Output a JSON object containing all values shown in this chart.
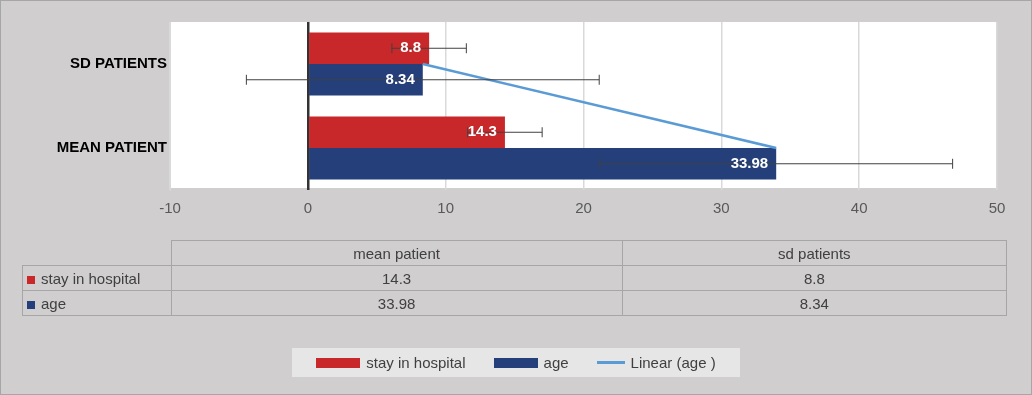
{
  "chart_data": {
    "type": "bar",
    "orientation": "horizontal",
    "categories": [
      "SD PATIENTS",
      "MEAN PATIENT"
    ],
    "series": [
      {
        "name": "stay in hospital",
        "color": "#c9282a",
        "values": [
          8.8,
          14.3
        ],
        "errors": [
          2.7,
          2.7
        ],
        "value_labels": [
          "8.8",
          "14.3"
        ]
      },
      {
        "name": "age",
        "color": "#243f7a",
        "values": [
          8.34,
          33.98
        ],
        "errors": [
          12.8,
          12.8
        ],
        "value_labels": [
          "8.34",
          "33.98"
        ]
      },
      {
        "name": "Linear (age )",
        "type": "line",
        "color": "#5b9bd5",
        "values": [
          8.34,
          33.98
        ]
      }
    ],
    "xlim": [
      -10,
      50
    ],
    "xticks": [
      -10,
      0,
      10,
      20,
      30,
      40,
      50
    ],
    "grid": "x",
    "legend": "bottom",
    "marker": "none",
    "annotations": [
      "mean patient",
      "sd patients"
    ]
  }
}
